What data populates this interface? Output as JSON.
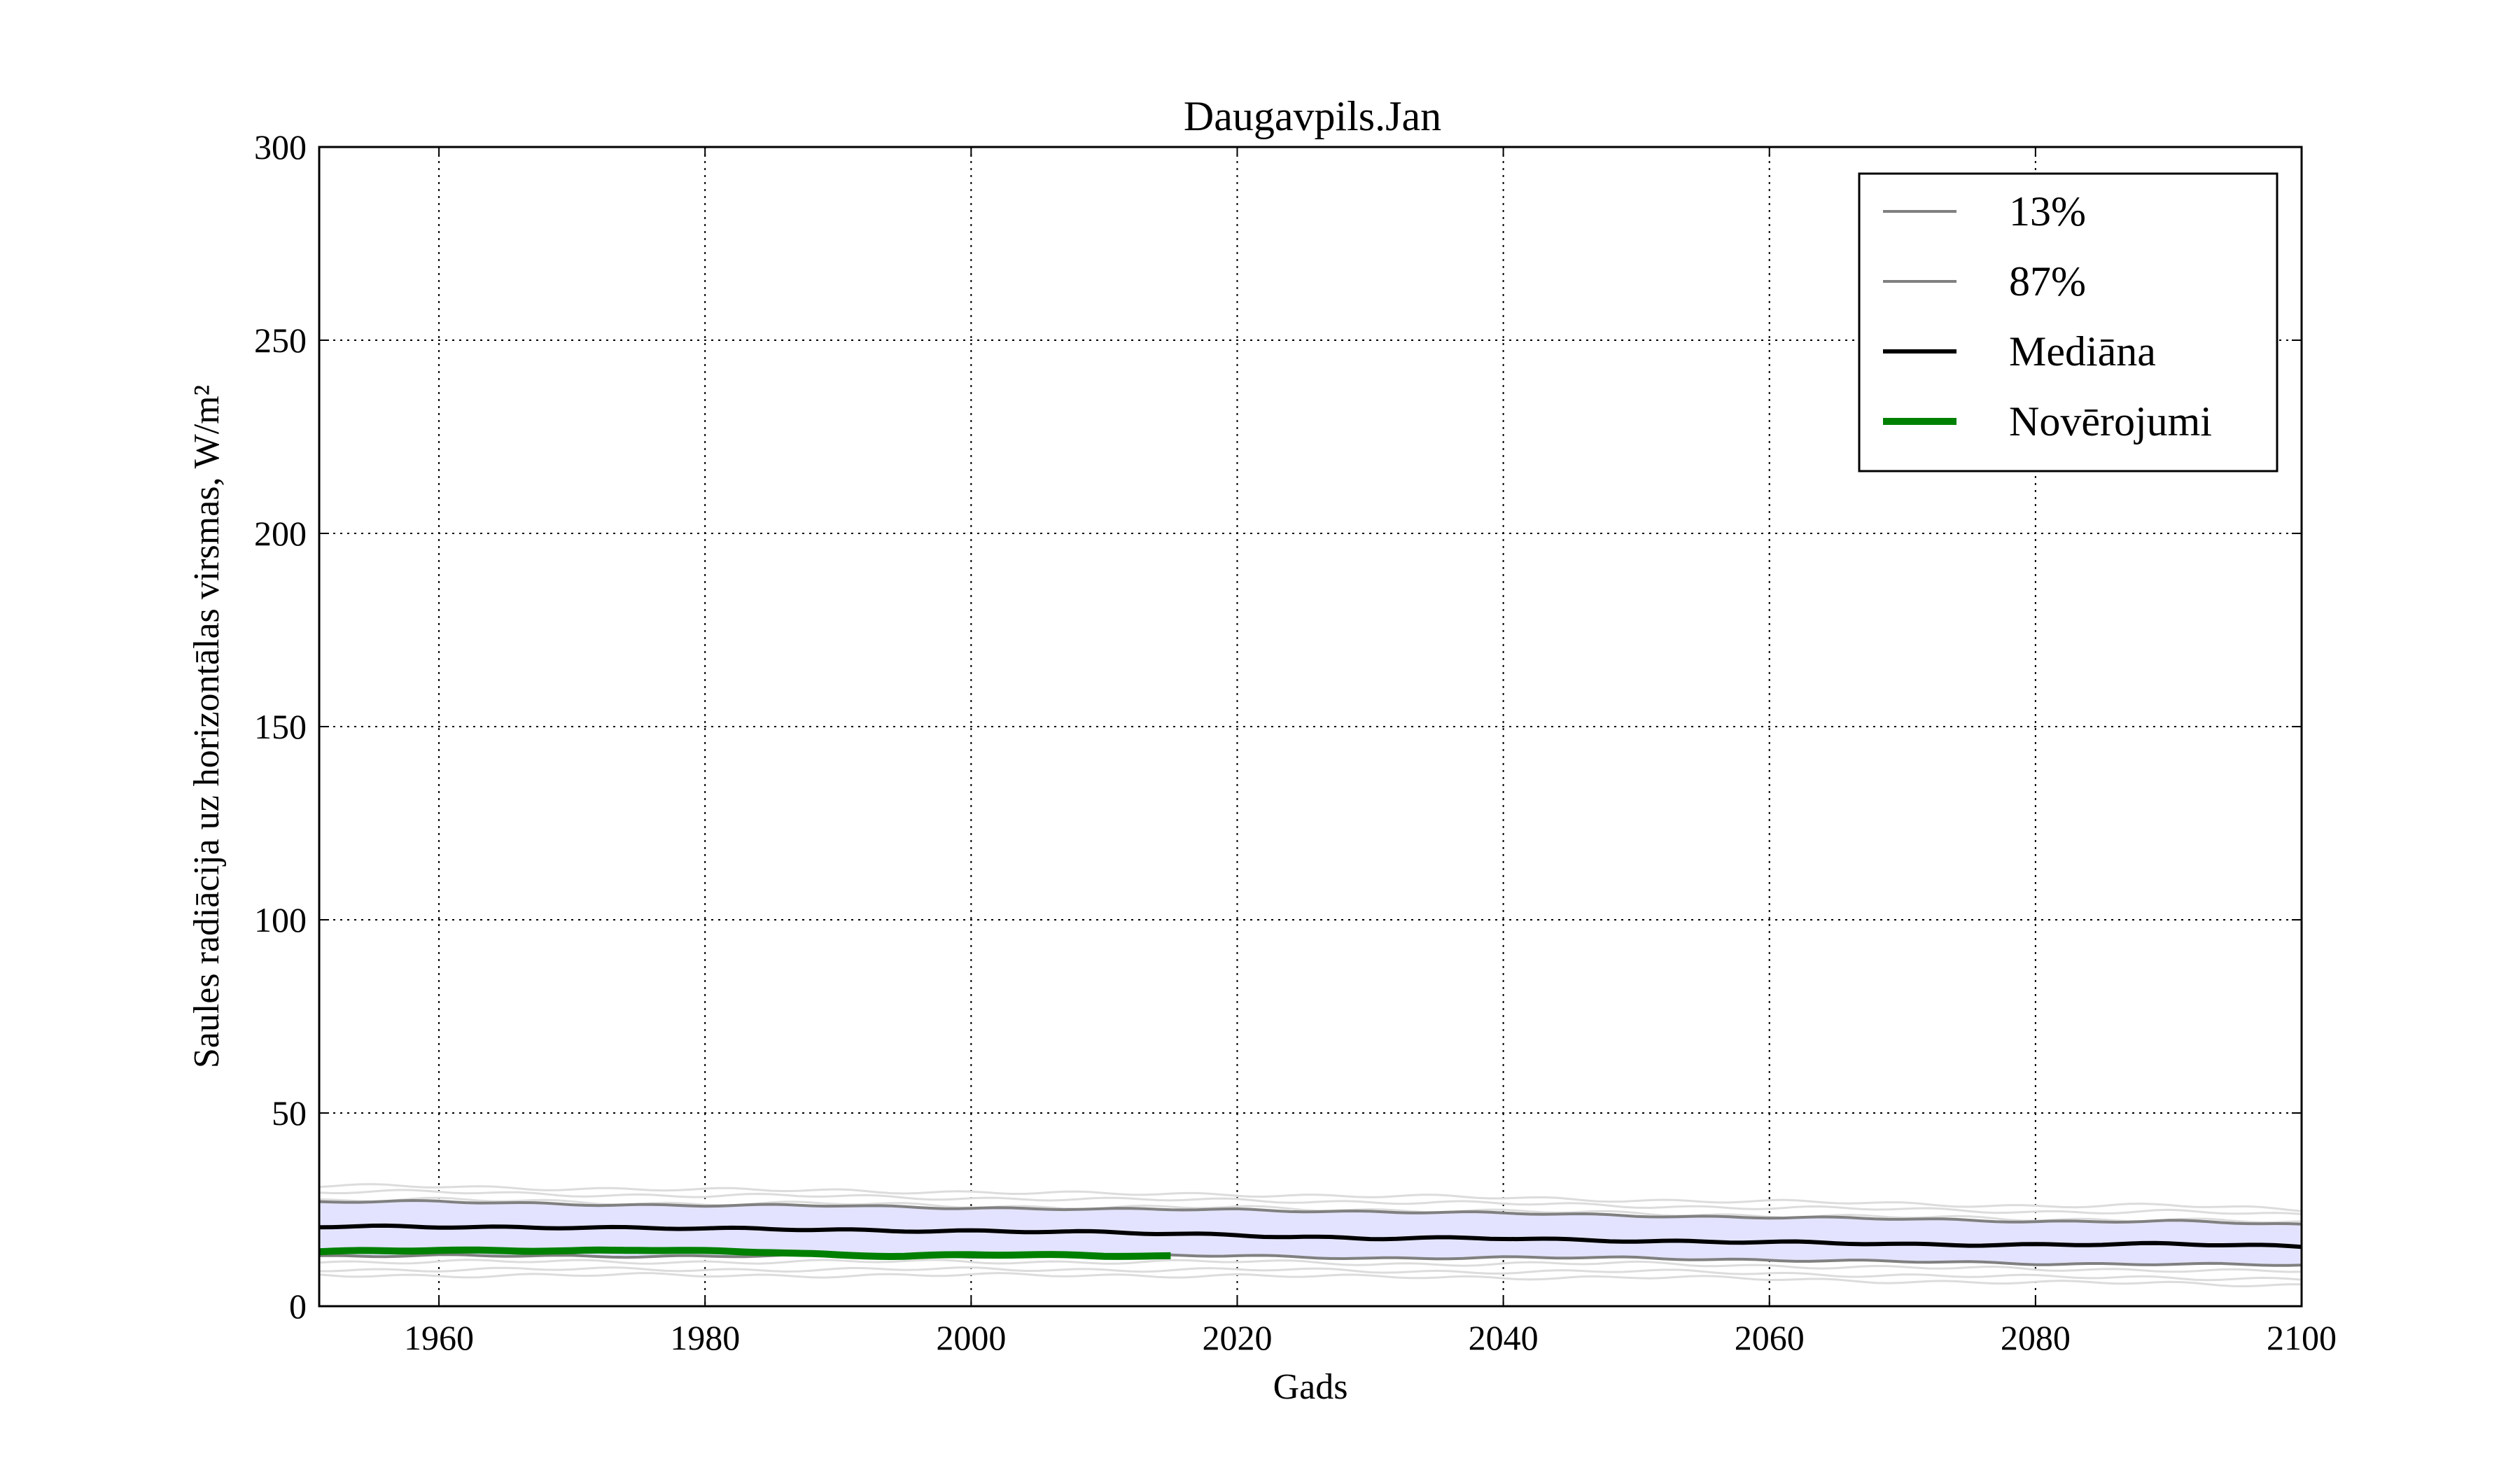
{
  "chart_data": {
    "type": "line",
    "title": "Daugavpils.Jan",
    "xlabel": "Gads",
    "ylabel": "Saules radiācija uz horizontālas virsmas, W/m²",
    "xlim": [
      1951,
      2100
    ],
    "ylim": [
      0,
      300
    ],
    "xticks": [
      "1960",
      "1980",
      "2000",
      "2020",
      "2040",
      "2060",
      "2080",
      "2100"
    ],
    "yticks": [
      "0",
      "50",
      "100",
      "150",
      "200",
      "250",
      "300"
    ],
    "grid": true,
    "legend_position": "top-right",
    "legend": [
      {
        "label": "13%",
        "color": "#808080",
        "style": "thin"
      },
      {
        "label": "87%",
        "color": "#808080",
        "style": "thin"
      },
      {
        "label": "Mediāna",
        "color": "#000000",
        "style": "medium"
      },
      {
        "label": "Novērojumi",
        "color": "#008000",
        "style": "thick"
      }
    ],
    "series": [
      {
        "name": "13%",
        "color": "#808080",
        "x": [
          1951,
          1960,
          1970,
          1980,
          1990,
          2000,
          2010,
          2020,
          2030,
          2040,
          2050,
          2060,
          2070,
          2080,
          2090,
          2100
        ],
        "values": [
          13,
          13,
          13,
          13,
          13,
          13,
          13,
          13,
          12.5,
          12.5,
          12.5,
          12,
          11.5,
          11,
          11,
          10.5
        ]
      },
      {
        "name": "87%",
        "color": "#808080",
        "x": [
          1951,
          1960,
          1970,
          1980,
          1990,
          2000,
          2010,
          2020,
          2030,
          2040,
          2050,
          2060,
          2070,
          2080,
          2090,
          2100
        ],
        "values": [
          27,
          27,
          26.5,
          26,
          26,
          25.5,
          25,
          25,
          24.5,
          24,
          23.5,
          23,
          22.5,
          22,
          22,
          21
        ]
      },
      {
        "name": "Mediāna",
        "color": "#000000",
        "x": [
          1951,
          1960,
          1970,
          1980,
          1990,
          2000,
          2010,
          2020,
          2030,
          2040,
          2050,
          2060,
          2070,
          2080,
          2090,
          2100
        ],
        "values": [
          20.5,
          20.5,
          20.5,
          20,
          19.8,
          19.5,
          19,
          18.5,
          17.5,
          17.5,
          17,
          16.5,
          16,
          16,
          16,
          15.5
        ]
      },
      {
        "name": "Novērojumi",
        "color": "#008000",
        "x": [
          1951,
          1955,
          1960,
          1965,
          1970,
          1975,
          1980,
          1985,
          1990,
          1995,
          2000,
          2005,
          2010,
          2015
        ],
        "values": [
          14,
          14.3,
          14.5,
          14.5,
          14.3,
          14.5,
          14.2,
          14,
          13.3,
          13,
          13.3,
          13.2,
          13,
          13
        ]
      }
    ]
  },
  "colors": {
    "band_fill": "#e3e3ff",
    "ensemble_line": "#dcdcdc",
    "percentile": "#808080",
    "median": "#000000",
    "observations": "#008000"
  }
}
